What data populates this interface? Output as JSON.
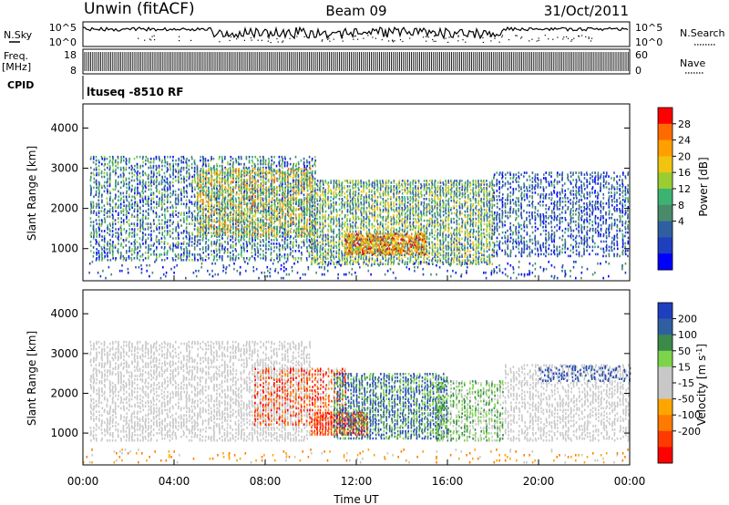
{
  "header": {
    "title_left": "Unwin (fitACF)",
    "title_center": "Beam 09",
    "title_right": "31/Oct/2011"
  },
  "strips": {
    "nsky_label": "N.Sky",
    "nsky_ticks": [
      "10^5",
      "10^0"
    ],
    "nsearch_label": "N.Search",
    "freq_label": "Freq.",
    "freq_unit": "[MHz]",
    "freq_ticks": [
      "18",
      "8"
    ],
    "nave_label": "Nave",
    "nave_ticks": [
      "60",
      "0"
    ],
    "cpid_label": "CPID",
    "cpid_value": "ltuseq -8510 RF"
  },
  "chart_data": [
    {
      "type": "heatmap",
      "name": "power-panel",
      "ylabel": "Slant Range [km]",
      "yticks": [
        1000,
        2000,
        3000,
        4000
      ],
      "ylim": [
        200,
        4600
      ],
      "xlim": [
        0,
        24
      ],
      "colorbar": {
        "label": "Power [dB]",
        "ticks": [
          "28",
          "24",
          "20",
          "16",
          "12",
          "8",
          "4"
        ],
        "colors": [
          "#ff0000",
          "#ff6a00",
          "#ff9f00",
          "#f1c40f",
          "#9acd32",
          "#3cb371",
          "#4a8a6a",
          "#2f5fa0",
          "#1f3fbf",
          "#0000ff"
        ]
      },
      "bands": [
        {
          "t0": 0.3,
          "t1": 10.2,
          "r0": 700,
          "r1": 3300,
          "density": 0.55,
          "levels": [
            5,
            9,
            13,
            17
          ]
        },
        {
          "t0": 5.0,
          "t1": 10.0,
          "r0": 1300,
          "r1": 3000,
          "density": 0.65,
          "levels": [
            13,
            17,
            21,
            25
          ]
        },
        {
          "t0": 10.0,
          "t1": 18.0,
          "r0": 600,
          "r1": 2700,
          "density": 0.75,
          "levels": [
            9,
            13,
            17,
            21
          ]
        },
        {
          "t0": 11.5,
          "t1": 15.0,
          "r0": 850,
          "r1": 1350,
          "density": 0.8,
          "levels": [
            21,
            25,
            29
          ]
        },
        {
          "t0": 18.0,
          "t1": 24.0,
          "r0": 800,
          "r1": 2900,
          "density": 0.5,
          "levels": [
            4,
            7,
            10,
            13
          ]
        },
        {
          "t0": 0.0,
          "t1": 24.0,
          "r0": 250,
          "r1": 700,
          "density": 0.12,
          "levels": [
            4,
            8,
            12
          ]
        }
      ]
    },
    {
      "type": "heatmap",
      "name": "velocity-panel",
      "ylabel": "Slant Range [km]",
      "yticks": [
        1000,
        2000,
        3000,
        4000
      ],
      "ylim": [
        200,
        4600
      ],
      "xlim": [
        0,
        24
      ],
      "xticks": [
        "00:00",
        "04:00",
        "08:00",
        "12:00",
        "16:00",
        "20:00",
        "00:00"
      ],
      "xlabel": "Time UT",
      "colorbar": {
        "label": "Velocity [m s^-1]",
        "ticks": [
          "200",
          "100",
          "50",
          "15",
          "-15",
          "-50",
          "-100",
          "-200"
        ],
        "colors": [
          "#1f3fbf",
          "#2f5fa0",
          "#3b8a4a",
          "#7cd44a",
          "#c8c8c8",
          "#c8c8c8",
          "#ffa500",
          "#ff7a00",
          "#ff3a00",
          "#ff0000"
        ]
      },
      "bands": [
        {
          "t0": 0.3,
          "t1": 10.0,
          "r0": 800,
          "r1": 3300,
          "density": 0.55,
          "levels": [
            -8,
            0,
            8,
            -5
          ]
        },
        {
          "t0": 7.5,
          "t1": 11.5,
          "r0": 1200,
          "r1": 2600,
          "density": 0.6,
          "levels": [
            -120,
            -60,
            -200,
            0
          ]
        },
        {
          "t0": 10.0,
          "t1": 12.5,
          "r0": 950,
          "r1": 1500,
          "density": 0.8,
          "levels": [
            -220,
            -150,
            -100
          ]
        },
        {
          "t0": 11.0,
          "t1": 16.0,
          "r0": 850,
          "r1": 2500,
          "density": 0.7,
          "levels": [
            120,
            220,
            60,
            30
          ]
        },
        {
          "t0": 15.5,
          "t1": 18.5,
          "r0": 800,
          "r1": 2300,
          "density": 0.55,
          "levels": [
            30,
            60,
            0
          ]
        },
        {
          "t0": 18.5,
          "t1": 24.0,
          "r0": 800,
          "r1": 2700,
          "density": 0.5,
          "levels": [
            0,
            -8,
            8
          ]
        },
        {
          "t0": 20.0,
          "t1": 24.0,
          "r0": 2300,
          "r1": 2700,
          "density": 0.35,
          "levels": [
            150,
            220,
            100
          ]
        },
        {
          "t0": 0.0,
          "t1": 24.0,
          "r0": 250,
          "r1": 600,
          "density": 0.1,
          "levels": [
            -60,
            -30,
            0
          ]
        }
      ]
    }
  ]
}
